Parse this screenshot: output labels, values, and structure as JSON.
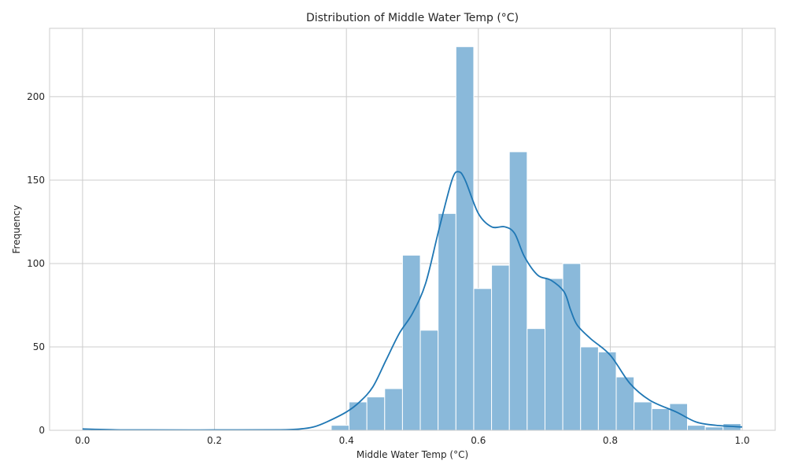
{
  "chart_data": {
    "type": "bar",
    "subtype": "histogram_with_kde",
    "title": "Distribution of Middle Water Temp (°C)",
    "xlabel": "Middle Water Temp (°C)",
    "ylabel": "Frequency",
    "xlim": [
      -0.05,
      1.05
    ],
    "ylim": [
      0,
      241
    ],
    "xticks": [
      0.0,
      0.2,
      0.4,
      0.6,
      0.8,
      1.0
    ],
    "xtick_labels": [
      "0.0",
      "0.2",
      "0.4",
      "0.6",
      "0.8",
      "1.0"
    ],
    "yticks": [
      0,
      50,
      100,
      150,
      200
    ],
    "ytick_labels": [
      "0",
      "50",
      "100",
      "150",
      "200"
    ],
    "grid": true,
    "bar_color": "#8ab9da",
    "bar_edge_color": "#ffffff",
    "line_color": "#1f77b4",
    "bins": [
      {
        "x0": 0.377,
        "x1": 0.404,
        "count": 3
      },
      {
        "x0": 0.404,
        "x1": 0.431,
        "count": 17
      },
      {
        "x0": 0.431,
        "x1": 0.458,
        "count": 20
      },
      {
        "x0": 0.458,
        "x1": 0.485,
        "count": 25
      },
      {
        "x0": 0.485,
        "x1": 0.512,
        "count": 105
      },
      {
        "x0": 0.512,
        "x1": 0.539,
        "count": 60
      },
      {
        "x0": 0.539,
        "x1": 0.566,
        "count": 130
      },
      {
        "x0": 0.566,
        "x1": 0.593,
        "count": 230
      },
      {
        "x0": 0.593,
        "x1": 0.62,
        "count": 85
      },
      {
        "x0": 0.62,
        "x1": 0.647,
        "count": 99
      },
      {
        "x0": 0.647,
        "x1": 0.674,
        "count": 167
      },
      {
        "x0": 0.674,
        "x1": 0.701,
        "count": 61
      },
      {
        "x0": 0.701,
        "x1": 0.728,
        "count": 91
      },
      {
        "x0": 0.728,
        "x1": 0.755,
        "count": 100
      },
      {
        "x0": 0.755,
        "x1": 0.782,
        "count": 50
      },
      {
        "x0": 0.782,
        "x1": 0.809,
        "count": 47
      },
      {
        "x0": 0.809,
        "x1": 0.836,
        "count": 32
      },
      {
        "x0": 0.836,
        "x1": 0.863,
        "count": 17
      },
      {
        "x0": 0.863,
        "x1": 0.89,
        "count": 13
      },
      {
        "x0": 0.89,
        "x1": 0.917,
        "count": 16
      },
      {
        "x0": 0.917,
        "x1": 0.944,
        "count": 3
      },
      {
        "x0": 0.944,
        "x1": 0.971,
        "count": 2
      },
      {
        "x0": 0.971,
        "x1": 0.998,
        "count": 4
      }
    ],
    "kde": {
      "x": [
        0.0,
        0.05,
        0.1,
        0.2,
        0.3,
        0.33,
        0.35,
        0.37,
        0.4,
        0.42,
        0.44,
        0.46,
        0.48,
        0.5,
        0.52,
        0.54,
        0.56,
        0.57,
        0.58,
        0.6,
        0.62,
        0.64,
        0.655,
        0.67,
        0.69,
        0.71,
        0.73,
        0.74,
        0.75,
        0.77,
        0.8,
        0.83,
        0.86,
        0.9,
        0.93,
        0.96,
        1.0
      ],
      "y": [
        0.8,
        0.3,
        0.2,
        0.2,
        0.3,
        0.8,
        2,
        5,
        11,
        17,
        26,
        42,
        58,
        70,
        88,
        120,
        150,
        155,
        150,
        130,
        122,
        122,
        118,
        104,
        93,
        90,
        83,
        72,
        63,
        55,
        45,
        28,
        18,
        11,
        5,
        3,
        2
      ]
    }
  }
}
